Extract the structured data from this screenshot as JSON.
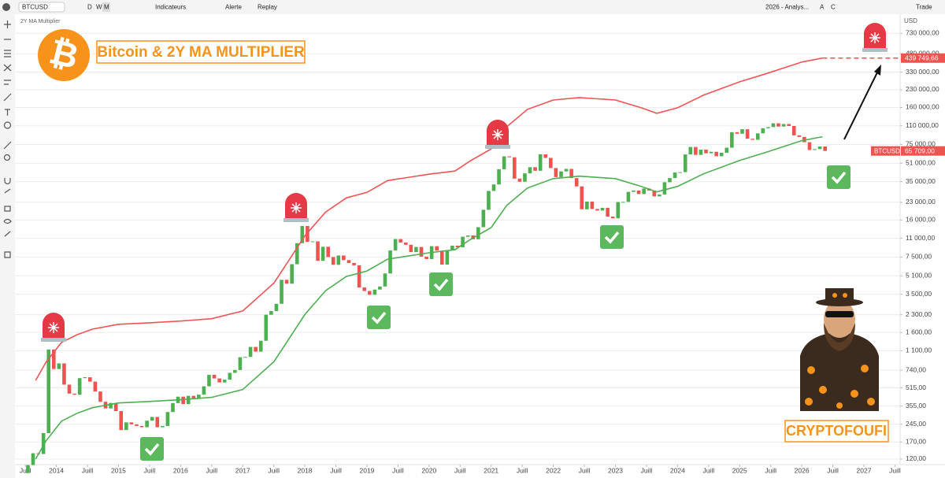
{
  "toolbar": {
    "symbol": "BTCUSD",
    "intervals": [
      "D",
      "W",
      "M"
    ],
    "indicators": "Indicateurs",
    "alert": "Alerte",
    "replay": "Replay",
    "layout": "2026 - Analys...",
    "buttons": [
      "A",
      "C"
    ],
    "trade": "Trade"
  },
  "chart_data": {
    "type": "candlestick",
    "title": "Bitcoin & 2Y MA MULTIPLIER",
    "subtitle": "2Y MA Multiplier",
    "annotation": "CRYPTOFOUFI",
    "y_unit": "USD",
    "log_scale": true,
    "grid": true,
    "xlim": [
      "2013-05",
      "2027-08"
    ],
    "ylim": [
      107,
      1080000
    ],
    "xticks": [
      {
        "value": "2013-07",
        "label": "Juill"
      },
      {
        "value": "2014-01",
        "label": "2014"
      },
      {
        "value": "2014-07",
        "label": "Juill"
      },
      {
        "value": "2015-01",
        "label": "2015"
      },
      {
        "value": "2015-07",
        "label": "Juill"
      },
      {
        "value": "2016-01",
        "label": "2016"
      },
      {
        "value": "2016-07",
        "label": "Juill"
      },
      {
        "value": "2017-01",
        "label": "2017"
      },
      {
        "value": "2017-07",
        "label": "Juill"
      },
      {
        "value": "2018-01",
        "label": "2018"
      },
      {
        "value": "2018-07",
        "label": "Juill"
      },
      {
        "value": "2019-01",
        "label": "2019"
      },
      {
        "value": "2019-07",
        "label": "Juill"
      },
      {
        "value": "2020-01",
        "label": "2020"
      },
      {
        "value": "2020-07",
        "label": "Juill"
      },
      {
        "value": "2021-01",
        "label": "2021"
      },
      {
        "value": "2021-07",
        "label": "Juill"
      },
      {
        "value": "2022-01",
        "label": "2022"
      },
      {
        "value": "2022-07",
        "label": "Juill"
      },
      {
        "value": "2023-01",
        "label": "2023"
      },
      {
        "value": "2023-07",
        "label": "Juill"
      },
      {
        "value": "2024-01",
        "label": "2024"
      },
      {
        "value": "2024-07",
        "label": "Juill"
      },
      {
        "value": "2025-01",
        "label": "2025"
      },
      {
        "value": "2025-07",
        "label": "Juill"
      },
      {
        "value": "2026-01",
        "label": "2026"
      },
      {
        "value": "2026-07",
        "label": "Juill"
      },
      {
        "value": "2027-01",
        "label": "2027"
      },
      {
        "value": "2027-07",
        "label": "Juill"
      }
    ],
    "yticks": [
      {
        "value": 120,
        "label": "120,00"
      },
      {
        "value": 170,
        "label": "170,00"
      },
      {
        "value": 245,
        "label": "245,00"
      },
      {
        "value": 355,
        "label": "355,00"
      },
      {
        "value": 515,
        "label": "515,00"
      },
      {
        "value": 740,
        "label": "740,00"
      },
      {
        "value": 1100,
        "label": "1 100,00"
      },
      {
        "value": 1600,
        "label": "1 600,00"
      },
      {
        "value": 2300,
        "label": "2 300,00"
      },
      {
        "value": 3500,
        "label": "3 500,00"
      },
      {
        "value": 5100,
        "label": "5 100,00"
      },
      {
        "value": 7500,
        "label": "7 500,00"
      },
      {
        "value": 11000,
        "label": "11 000,00"
      },
      {
        "value": 16000,
        "label": "16 000,00"
      },
      {
        "value": 23000,
        "label": "23 000,00"
      },
      {
        "value": 35000,
        "label": "35 000,00"
      },
      {
        "value": 51000,
        "label": "51 000,00"
      },
      {
        "value": 75000,
        "label": "75 000,00"
      },
      {
        "value": 110000,
        "label": "110 000,00"
      },
      {
        "value": 160000,
        "label": "160 000,00"
      },
      {
        "value": 230000,
        "label": "230 000,00"
      },
      {
        "value": 330000,
        "label": "330 000,00"
      },
      {
        "value": 480000,
        "label": "480 000,00"
      },
      {
        "value": 730000,
        "label": "730 000,00"
      }
    ],
    "candles": {
      "up_color": "#4caf50",
      "down_color": "#ef5350",
      "x": [
        "2013-07",
        "2013-08",
        "2013-09",
        "2013-10",
        "2013-11",
        "2013-12",
        "2014-01",
        "2014-02",
        "2014-03",
        "2014-04",
        "2014-05",
        "2014-06",
        "2014-07",
        "2014-08",
        "2014-09",
        "2014-10",
        "2014-11",
        "2014-12",
        "2015-01",
        "2015-02",
        "2015-03",
        "2015-04",
        "2015-05",
        "2015-06",
        "2015-07",
        "2015-08",
        "2015-09",
        "2015-10",
        "2015-11",
        "2015-12",
        "2016-01",
        "2016-02",
        "2016-03",
        "2016-04",
        "2016-05",
        "2016-06",
        "2016-07",
        "2016-08",
        "2016-09",
        "2016-10",
        "2016-11",
        "2016-12",
        "2017-01",
        "2017-02",
        "2017-03",
        "2017-04",
        "2017-05",
        "2017-06",
        "2017-07",
        "2017-08",
        "2017-09",
        "2017-10",
        "2017-11",
        "2017-12",
        "2018-01",
        "2018-02",
        "2018-03",
        "2018-04",
        "2018-05",
        "2018-06",
        "2018-07",
        "2018-08",
        "2018-09",
        "2018-10",
        "2018-11",
        "2018-12",
        "2019-01",
        "2019-02",
        "2019-03",
        "2019-04",
        "2019-05",
        "2019-06",
        "2019-07",
        "2019-08",
        "2019-09",
        "2019-10",
        "2019-11",
        "2019-12",
        "2020-01",
        "2020-02",
        "2020-03",
        "2020-04",
        "2020-05",
        "2020-06",
        "2020-07",
        "2020-08",
        "2020-09",
        "2020-10",
        "2020-11",
        "2020-12",
        "2021-01",
        "2021-02",
        "2021-03",
        "2021-04",
        "2021-05",
        "2021-06",
        "2021-07",
        "2021-08",
        "2021-09",
        "2021-10",
        "2021-11",
        "2021-12",
        "2022-01",
        "2022-02",
        "2022-03",
        "2022-04",
        "2022-05",
        "2022-06",
        "2022-07",
        "2022-08",
        "2022-09",
        "2022-10",
        "2022-11",
        "2022-12",
        "2023-01",
        "2023-02",
        "2023-03",
        "2023-04",
        "2023-05",
        "2023-06",
        "2023-07",
        "2023-08",
        "2023-09",
        "2023-10",
        "2023-11",
        "2023-12",
        "2024-01",
        "2024-02",
        "2024-03",
        "2024-04",
        "2024-05",
        "2024-06",
        "2024-07",
        "2024-08",
        "2024-09",
        "2024-10",
        "2024-11",
        "2024-12",
        "2025-01",
        "2025-02",
        "2025-03",
        "2025-04",
        "2025-05",
        "2025-06",
        "2025-07",
        "2025-08",
        "2025-09",
        "2025-10",
        "2025-11",
        "2025-12",
        "2026-01",
        "2026-02",
        "2026-03",
        "2026-04",
        "2026-05"
      ],
      "open": [
        90,
        106,
        135,
        133,
        204,
        1130,
        757,
        850,
        550,
        458,
        447,
        628,
        640,
        585,
        478,
        387,
        338,
        378,
        320,
        217,
        254,
        244,
        236,
        230,
        263,
        284,
        230,
        236,
        314,
        377,
        430,
        369,
        437,
        416,
        448,
        531,
        673,
        624,
        575,
        609,
        700,
        742,
        964,
        970,
        1190,
        1080,
        1350,
        2300,
        2480,
        2875,
        4700,
        4340,
        6470,
        9950,
        14150,
        10220,
        10330,
        6930,
        9240,
        7490,
        6390,
        7730,
        7030,
        6630,
        6320,
        4020,
        3740,
        3460,
        3850,
        4100,
        5350,
        8570,
        10820,
        10080,
        9630,
        8290,
        9200,
        7550,
        7190,
        9350,
        8540,
        6420,
        8630,
        9450,
        9140,
        11350,
        11650,
        10780,
        13800,
        19700,
        28990,
        33100,
        45200,
        58800,
        57700,
        37300,
        35000,
        41500,
        47100,
        43800,
        61300,
        57000,
        46300,
        38500,
        43200,
        45500,
        37700,
        31800,
        19900,
        23300,
        20050,
        19400,
        20500,
        17150,
        16550,
        23100,
        23150,
        28450,
        29250,
        27200,
        30450,
        29230,
        25930,
        26960,
        34640,
        37720,
        42280,
        42580,
        61130,
        71280,
        60640,
        67490,
        62680,
        64620,
        58970,
        63330,
        70220,
        96450,
        93430,
        102400,
        84350,
        82550,
        94200,
        104600,
        107100,
        115750,
        108250,
        114050,
        109500,
        90400,
        87500,
        78600,
        67000,
        68200,
        72000
      ],
      "close": [
        106,
        135,
        133,
        204,
        1130,
        757,
        850,
        550,
        458,
        447,
        628,
        640,
        585,
        478,
        387,
        338,
        378,
        320,
        217,
        254,
        244,
        236,
        230,
        263,
        284,
        230,
        236,
        314,
        377,
        430,
        369,
        437,
        416,
        448,
        531,
        673,
        624,
        575,
        609,
        700,
        742,
        964,
        970,
        1190,
        1080,
        1350,
        2300,
        2480,
        2875,
        4700,
        4340,
        6470,
        9950,
        14150,
        10220,
        10330,
        6930,
        9240,
        7490,
        6390,
        7730,
        7030,
        6630,
        6320,
        4020,
        3740,
        3460,
        3850,
        4100,
        5350,
        8570,
        10820,
        10080,
        9630,
        8290,
        9200,
        7550,
        7190,
        9350,
        8540,
        6420,
        8630,
        9450,
        9140,
        11350,
        11650,
        10780,
        13800,
        19700,
        28990,
        33100,
        45200,
        58800,
        57700,
        37300,
        35000,
        41500,
        47100,
        43800,
        61300,
        57000,
        46300,
        38500,
        43200,
        45500,
        37700,
        31800,
        19900,
        23300,
        20050,
        19400,
        20500,
        17150,
        16550,
        23100,
        23150,
        28450,
        29250,
        27200,
        30450,
        29230,
        25930,
        26960,
        34640,
        37720,
        42280,
        42580,
        61130,
        71280,
        60640,
        67490,
        62680,
        64620,
        58970,
        63330,
        70220,
        96450,
        93430,
        102400,
        84350,
        82550,
        94200,
        104600,
        107100,
        115750,
        108250,
        114050,
        109500,
        90400,
        87500,
        78600,
        67000,
        68200,
        72000,
        65709
      ]
    },
    "series": [
      {
        "color": "#4caf50",
        "x": [
          "2013-09",
          "2013-11",
          "2014-02",
          "2014-05",
          "2014-08",
          "2015-01",
          "2015-07",
          "2016-01",
          "2016-07",
          "2017-01",
          "2017-07",
          "2017-10",
          "2018-01",
          "2018-05",
          "2018-09",
          "2019-01",
          "2019-05",
          "2020-01",
          "2020-06",
          "2020-09",
          "2021-01",
          "2021-04",
          "2021-08",
          "2022-01",
          "2022-06",
          "2023-01",
          "2023-06",
          "2023-09",
          "2024-01",
          "2024-06",
          "2025-01",
          "2025-06",
          "2026-01",
          "2026-05"
        ],
        "values": [
          120,
          174,
          261,
          306,
          343,
          378,
          390,
          404,
          424,
          497,
          877,
          1420,
          2310,
          3760,
          5030,
          5630,
          7170,
          8170,
          8710,
          10740,
          13700,
          21550,
          30750,
          37300,
          39200,
          37300,
          31800,
          28400,
          31800,
          41100,
          54100,
          63700,
          81100,
          87950
        ]
      },
      {
        "color": "#f05454",
        "x": [
          "2013-09",
          "2013-11",
          "2014-02",
          "2014-05",
          "2014-08",
          "2015-01",
          "2015-07",
          "2016-01",
          "2016-07",
          "2017-01",
          "2017-07",
          "2017-10",
          "2018-01",
          "2018-05",
          "2018-09",
          "2019-01",
          "2019-05",
          "2020-01",
          "2020-06",
          "2020-09",
          "2021-01",
          "2021-04",
          "2021-08",
          "2022-01",
          "2022-06",
          "2023-01",
          "2023-06",
          "2023-09",
          "2024-01",
          "2024-06",
          "2025-01",
          "2025-06",
          "2026-01",
          "2026-05"
        ],
        "values": [
          600,
          870,
          1305,
          1530,
          1715,
          1890,
          1950,
          2020,
          2120,
          2485,
          4385,
          7100,
          11550,
          18800,
          25150,
          28150,
          35850,
          40850,
          43550,
          53700,
          68500,
          107750,
          153750,
          186500,
          196000,
          186500,
          159000,
          142000,
          159000,
          205500,
          270500,
          318500,
          405500,
          439750
        ]
      }
    ],
    "price_labels": [
      {
        "name": "BTCUSD",
        "value": 65709,
        "label": "65 709,00",
        "color": "#ef5350"
      },
      {
        "value": 439749.66,
        "label": "439 749,66",
        "color": "#ef5350"
      }
    ]
  }
}
